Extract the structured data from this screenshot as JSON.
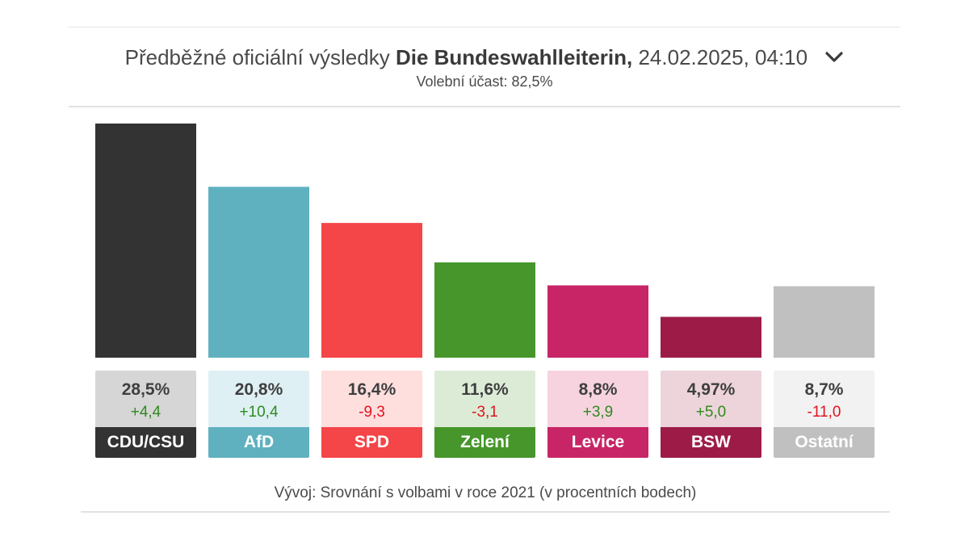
{
  "header": {
    "title_prefix": "Předběžné oficiální výsledky",
    "title_source": "Die Bundeswahlleiterin,",
    "title_date": "24.02.2025, 04:10",
    "subtitle": "Volební účast: 82,5%",
    "chevron_icon": "chevron-down-icon"
  },
  "chart_data": {
    "type": "bar",
    "categories": [
      "CDU/CSU",
      "AfD",
      "SPD",
      "Zelení",
      "Levice",
      "BSW",
      "Ostatní"
    ],
    "values": [
      28.5,
      20.8,
      16.4,
      11.6,
      8.8,
      4.97,
      8.7
    ],
    "value_labels": [
      "28,5%",
      "20,8%",
      "16,4%",
      "11,6%",
      "8,8%",
      "4,97%",
      "8,7%"
    ],
    "changes": [
      4.4,
      10.4,
      -9.3,
      -3.1,
      3.9,
      5.0,
      -11.0
    ],
    "change_labels": [
      "+4,4",
      "+10,4",
      "-9,3",
      "-3,1",
      "+3,9",
      "+5,0",
      "-11,0"
    ],
    "colors": [
      "#333333",
      "#5fb1bf",
      "#f44548",
      "#46962b",
      "#c72566",
      "#9c1c47",
      "#c0c0c0"
    ],
    "panel_colors": [
      "#d6d6d6",
      "#dff0f5",
      "#ffdede",
      "#dcebd6",
      "#f6d3df",
      "#ecd4da",
      "#f2f2f2"
    ],
    "ylim": [
      0,
      28.5
    ]
  },
  "footnote": "Vývoj: Srovnání s volbami v roce 2021 (v procentních bodech)"
}
